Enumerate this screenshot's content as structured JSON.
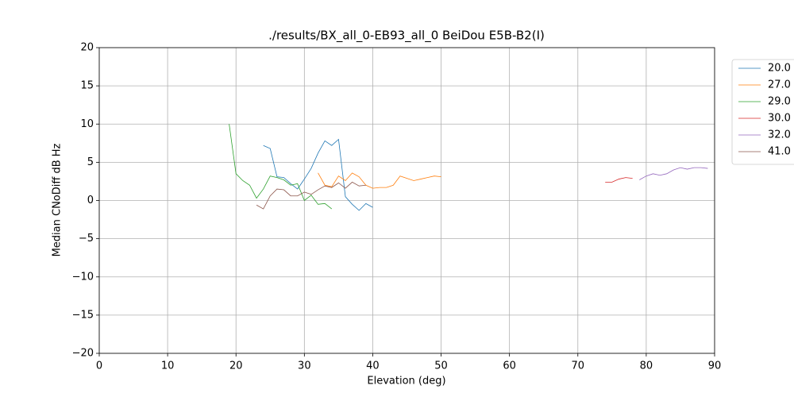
{
  "chart_data": {
    "type": "line",
    "title": "./results/BX_all_0-EB93_all_0 BeiDou E5B-B2(I)",
    "x_label": "Elevation (deg)",
    "y_label": "Median CNoDiff dB Hz",
    "xlim": [
      0,
      90
    ],
    "ylim": [
      -20,
      20
    ],
    "xticks": [
      0,
      10,
      20,
      30,
      40,
      50,
      60,
      70,
      80,
      90
    ],
    "yticks": [
      {
        "value": -20,
        "label": "−20"
      },
      {
        "value": -15,
        "label": "−15"
      },
      {
        "value": -10,
        "label": "−10"
      },
      {
        "value": -5,
        "label": "−5"
      },
      0,
      5,
      10,
      15,
      20
    ],
    "grid": true,
    "legend": "outside-upper-right",
    "series": [
      {
        "name": "20.0",
        "color": "#1f77b4",
        "x": [
          24,
          25,
          26,
          27,
          28,
          29,
          30,
          31,
          32,
          33,
          34,
          35,
          36,
          37,
          38,
          39,
          40
        ],
        "values": [
          7.2,
          6.8,
          3.1,
          3.0,
          2.2,
          1.5,
          2.8,
          4.2,
          6.2,
          7.8,
          7.2,
          8.0,
          0.5,
          -0.5,
          -1.3,
          -0.4,
          -0.9
        ]
      },
      {
        "name": "27.0",
        "color": "#ff7f0e",
        "x": [
          32,
          33,
          34,
          35,
          36,
          37,
          38,
          39,
          40,
          41,
          42,
          43,
          44,
          45,
          46,
          47,
          48,
          49,
          50
        ],
        "values": [
          3.6,
          2.0,
          1.8,
          3.2,
          2.6,
          3.6,
          3.1,
          2.0,
          1.6,
          1.7,
          1.7,
          2.0,
          3.2,
          2.9,
          2.6,
          2.8,
          3.0,
          3.2,
          3.1
        ]
      },
      {
        "name": "29.0",
        "color": "#2ca02c",
        "x": [
          19,
          20,
          21,
          22,
          23,
          24,
          25,
          26,
          27,
          28,
          29,
          30,
          31,
          32,
          33,
          34
        ],
        "values": [
          10.0,
          3.5,
          2.6,
          2.0,
          0.3,
          1.5,
          3.2,
          3.0,
          2.7,
          2.0,
          2.2,
          0.0,
          0.7,
          -0.5,
          -0.4,
          -1.1
        ]
      },
      {
        "name": "30.0",
        "color": "#d62728",
        "x": [
          74,
          75,
          76,
          77,
          78
        ],
        "values": [
          2.4,
          2.4,
          2.8,
          3.0,
          2.9
        ]
      },
      {
        "name": "32.0",
        "color": "#9467bd",
        "x": [
          79,
          80,
          81,
          82,
          83,
          84,
          85,
          86,
          87,
          88,
          89
        ],
        "values": [
          2.7,
          3.2,
          3.5,
          3.3,
          3.5,
          4.0,
          4.3,
          4.1,
          4.3,
          4.3,
          4.2
        ]
      },
      {
        "name": "41.0",
        "color": "#8c564b",
        "x": [
          23,
          24,
          25,
          26,
          27,
          28,
          29,
          30,
          31,
          32,
          33,
          34,
          35,
          36,
          37,
          38,
          39
        ],
        "values": [
          -0.6,
          -1.1,
          0.6,
          1.5,
          1.4,
          0.6,
          0.6,
          1.1,
          0.8,
          1.4,
          1.9,
          1.7,
          2.3,
          1.6,
          2.4,
          1.9,
          2.0
        ]
      }
    ]
  }
}
